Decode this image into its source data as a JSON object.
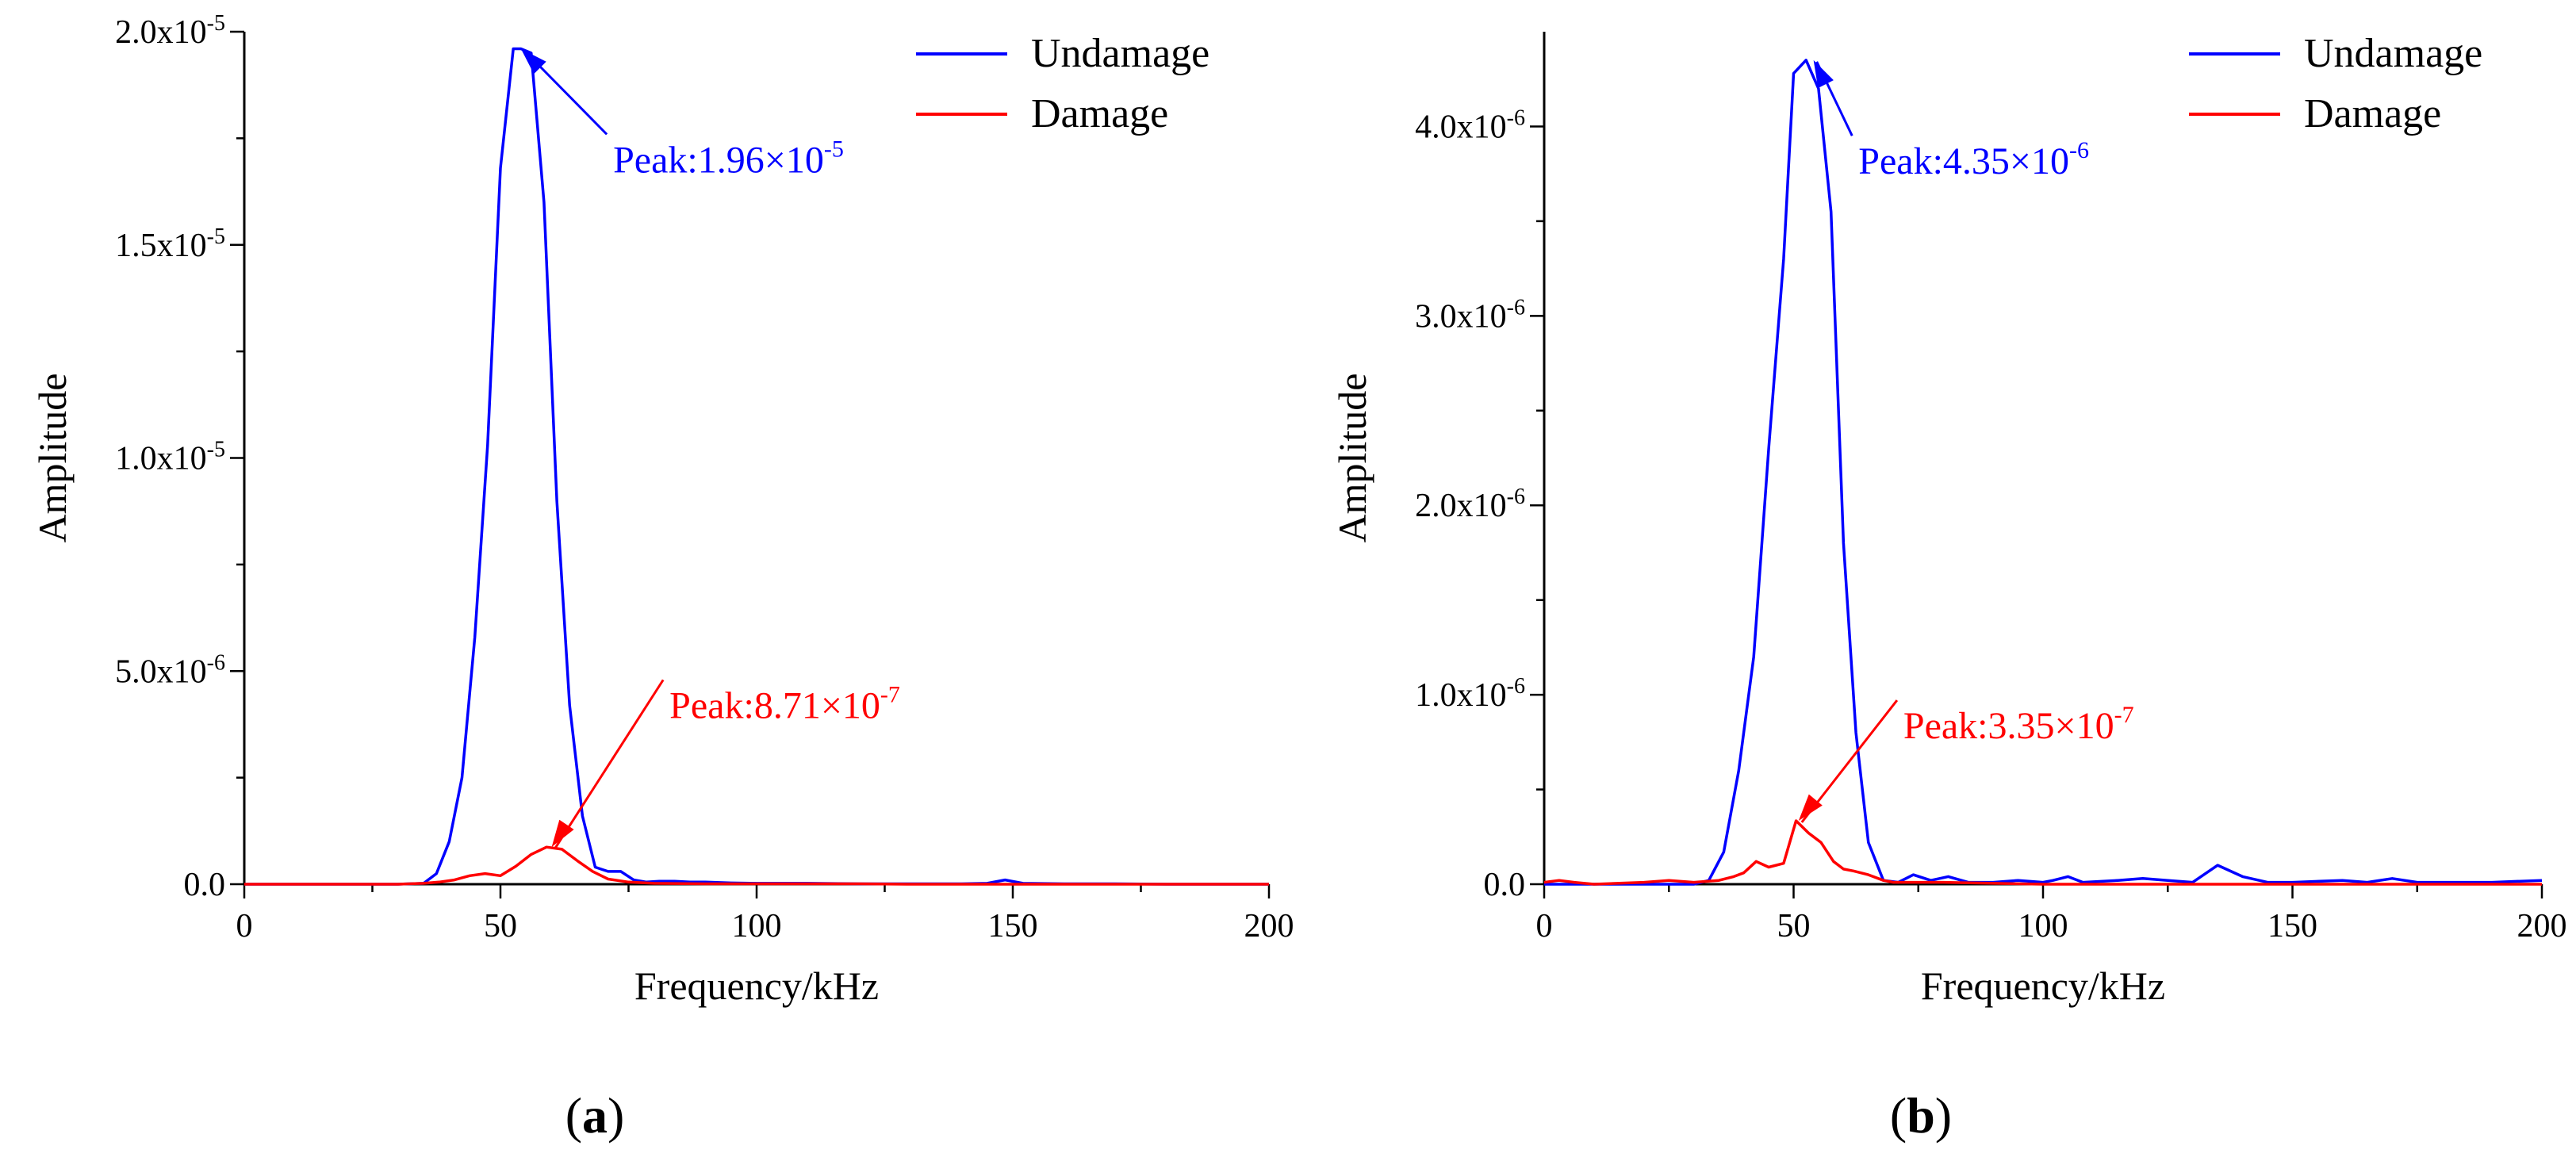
{
  "colors": {
    "undamage": "#0000ff",
    "damage": "#ff0000",
    "axis": "#000000"
  },
  "chart_data": [
    {
      "type": "line",
      "panel": "a",
      "panel_label_paren_open": "(",
      "panel_label_letter": "a",
      "panel_label_paren_close": ")",
      "xlabel": "Frequency/kHz",
      "ylabel": "Amplitude",
      "xlim": [
        0,
        200
      ],
      "ylim": [
        0,
        2e-05
      ],
      "x_ticks": [
        0,
        50,
        100,
        150,
        200
      ],
      "x_tick_labels": [
        "0",
        "50",
        "100",
        "150",
        "200"
      ],
      "y_ticks": [
        0,
        5e-06,
        1e-05,
        1.5e-05,
        2e-05
      ],
      "y_tick_labels": [
        {
          "base": "0.0",
          "exp": ""
        },
        {
          "base": "5.0x10",
          "exp": "-6"
        },
        {
          "base": "1.0x10",
          "exp": "-5"
        },
        {
          "base": "1.5x10",
          "exp": "-5"
        },
        {
          "base": "2.0x10",
          "exp": "-5"
        }
      ],
      "legend_position": "top-right",
      "series": [
        {
          "name": "Undamage",
          "color": "#0000ff",
          "x": [
            0,
            10,
            20,
            30,
            35,
            37.5,
            40,
            42.5,
            45,
            47.5,
            50,
            52.5,
            54,
            56,
            58.5,
            61,
            63.5,
            66,
            68.5,
            71,
            73.5,
            76,
            78.5,
            81,
            84,
            87,
            90,
            95,
            100,
            110,
            120,
            130,
            140,
            145,
            148.5,
            152,
            160,
            170,
            180,
            190,
            200
          ],
          "y": [
            0,
            0,
            0,
            0,
            2e-08,
            2.5e-07,
            1e-06,
            2.5e-06,
            5.8e-06,
            1.03e-05,
            1.68e-05,
            1.96e-05,
            1.96e-05,
            1.95e-05,
            1.6e-05,
            9e-06,
            4.2e-06,
            1.6e-06,
            4e-07,
            3e-07,
            3e-07,
            1e-07,
            5e-08,
            7e-08,
            7e-08,
            5e-08,
            5e-08,
            3e-08,
            2e-08,
            2e-08,
            1e-08,
            1e-08,
            1e-08,
            2e-08,
            1e-07,
            2e-08,
            1e-08,
            1e-08,
            0,
            0,
            0
          ]
        },
        {
          "name": "Damage",
          "color": "#ff0000",
          "x": [
            0,
            10,
            20,
            30,
            35,
            38,
            41,
            44,
            47,
            50,
            53,
            56,
            59,
            62,
            65,
            68,
            71,
            75,
            80,
            90,
            100,
            110,
            120,
            130,
            140,
            150,
            160,
            170,
            180,
            190,
            200
          ],
          "y": [
            0,
            0,
            0,
            0,
            2e-08,
            5e-08,
            1e-07,
            2e-07,
            2.5e-07,
            2e-07,
            4.2e-07,
            7e-07,
            8.7e-07,
            8.2e-07,
            5.5e-07,
            3e-07,
            1.2e-07,
            5e-08,
            2e-08,
            1e-08,
            1e-08,
            1e-08,
            1e-08,
            0,
            0,
            0,
            0,
            0,
            0,
            0,
            0
          ]
        }
      ],
      "annotations": [
        {
          "series": "Undamage",
          "prefix": "Peak:",
          "mantissa": "1.96×10",
          "exp": "-5",
          "point_x": 54,
          "point_y": 1.96e-05,
          "label_x": 72,
          "label_y": 1.67e-05
        },
        {
          "series": "Damage",
          "prefix": "Peak:",
          "mantissa": "8.71×10",
          "exp": "-7",
          "point_x": 60,
          "point_y": 8.71e-07,
          "label_x": 83,
          "label_y": 3.9e-06
        }
      ]
    },
    {
      "type": "line",
      "panel": "b",
      "panel_label_paren_open": "(",
      "panel_label_letter": "b",
      "panel_label_paren_close": ")",
      "xlabel": "Frequency/kHz",
      "ylabel": "Amplitude",
      "xlim": [
        0,
        200
      ],
      "ylim": [
        0,
        4.5e-06
      ],
      "x_ticks": [
        0,
        50,
        100,
        150,
        200
      ],
      "x_tick_labels": [
        "0",
        "50",
        "100",
        "150",
        "200"
      ],
      "y_ticks": [
        0,
        1e-06,
        2e-06,
        3e-06,
        4e-06
      ],
      "y_tick_labels": [
        {
          "base": "0.0",
          "exp": ""
        },
        {
          "base": "1.0x10",
          "exp": "-6"
        },
        {
          "base": "2.0x10",
          "exp": "-6"
        },
        {
          "base": "3.0x10",
          "exp": "-6"
        },
        {
          "base": "4.0x10",
          "exp": "-6"
        }
      ],
      "legend_position": "top-right",
      "series": [
        {
          "name": "Undamage",
          "color": "#0000ff",
          "x": [
            0,
            5,
            10,
            20,
            30,
            33,
            36,
            39,
            42,
            45,
            48,
            50,
            52.5,
            55,
            57.5,
            60,
            62.5,
            65,
            68,
            71,
            74,
            77.5,
            81,
            85,
            90,
            95,
            100,
            102,
            105,
            108,
            115,
            120,
            125,
            130,
            135,
            140,
            145,
            150,
            160,
            165,
            170,
            175,
            180,
            190,
            200
          ],
          "y": [
            0,
            0,
            0,
            0,
            0,
            2e-08,
            1.7e-07,
            6e-07,
            1.2e-06,
            2.3e-06,
            3.3e-06,
            4.28e-06,
            4.35e-06,
            4.2e-06,
            3.55e-06,
            1.8e-06,
            8e-07,
            2.2e-07,
            2e-08,
            1e-08,
            5e-08,
            2e-08,
            4e-08,
            1e-08,
            1e-08,
            2e-08,
            1e-08,
            2e-08,
            4e-08,
            1e-08,
            2e-08,
            3e-08,
            2e-08,
            1e-08,
            1e-07,
            4e-08,
            1e-08,
            1e-08,
            2e-08,
            1e-08,
            3e-08,
            1e-08,
            1e-08,
            1e-08,
            2e-08
          ]
        },
        {
          "name": "Damage",
          "color": "#ff0000",
          "x": [
            0,
            3,
            6,
            10,
            20,
            25,
            30,
            35,
            38,
            40,
            42.5,
            45,
            48,
            50.5,
            53,
            55.5,
            58,
            60,
            62,
            65,
            68,
            70,
            80,
            100,
            120,
            140,
            160,
            180,
            200
          ],
          "y": [
            1e-08,
            2e-08,
            1e-08,
            0,
            1e-08,
            2e-08,
            1e-08,
            2e-08,
            4e-08,
            6e-08,
            1.2e-07,
            9e-08,
            1.1e-07,
            3.35e-07,
            2.7e-07,
            2.2e-07,
            1.2e-07,
            8e-08,
            7e-08,
            5e-08,
            2e-08,
            1e-08,
            1e-08,
            0,
            0,
            0,
            0,
            0,
            0
          ]
        }
      ],
      "annotations": [
        {
          "series": "Undamage",
          "prefix": "Peak:",
          "mantissa": "4.35×10",
          "exp": "-6",
          "point_x": 54,
          "point_y": 4.35e-06,
          "label_x": 63,
          "label_y": 3.75e-06
        },
        {
          "series": "Damage",
          "prefix": "Peak:",
          "mantissa": "3.35×10",
          "exp": "-7",
          "point_x": 51,
          "point_y": 3.35e-07,
          "label_x": 72,
          "label_y": 7.7e-07
        }
      ]
    }
  ]
}
